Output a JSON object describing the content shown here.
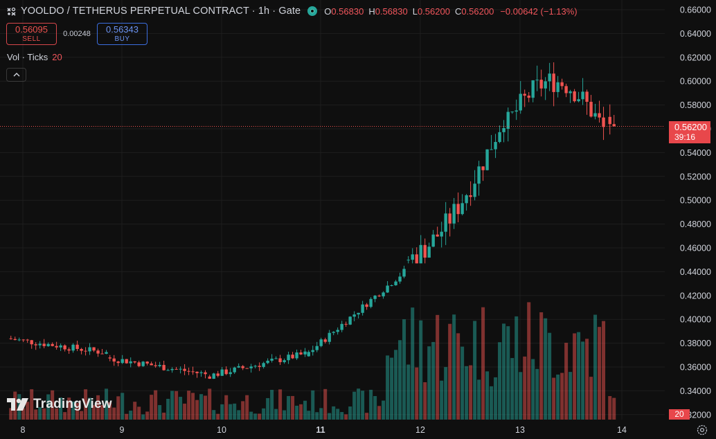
{
  "header": {
    "title": "YOOLDO / TETHERUS PERPETUAL CONTRACT · 1h · Gate",
    "open_label": "O",
    "open_value": "0.56830",
    "high_label": "H",
    "high_value": "0.56830",
    "low_label": "L",
    "low_value": "0.56200",
    "close_label": "C",
    "close_value": "0.56200",
    "change": "−0.00642 (−1.13%)"
  },
  "trade": {
    "sell_price": "0.56095",
    "sell_label": "SELL",
    "spread": "0.00248",
    "buy_price": "0.56343",
    "buy_label": "BUY"
  },
  "volume_legend": {
    "label": "Vol · Ticks",
    "value": "20"
  },
  "price_scale": {
    "labels": [
      "0.66000",
      "0.64000",
      "0.62000",
      "0.60000",
      "0.58000",
      "0.56000",
      "0.54000",
      "0.52000",
      "0.50000",
      "0.48000",
      "0.46000",
      "0.44000",
      "0.42000",
      "0.40000",
      "0.38000",
      "0.36000",
      "0.34000",
      "0.32000"
    ],
    "current_price": "0.56200",
    "countdown": "39:16",
    "volume_tag": "20"
  },
  "time_scale": {
    "labels": [
      "8",
      "9",
      "10",
      "11",
      "12",
      "13",
      "14"
    ],
    "bold_label": "11"
  },
  "watermark": "TradingView",
  "colors": {
    "up": "#26a69a",
    "down": "#ef5350",
    "background": "#0f0f0f",
    "grid": "#1e1e1e"
  },
  "chart_data": {
    "type": "candlestick",
    "interval": "1h",
    "x_labels": [
      "8",
      "9",
      "10",
      "11",
      "12",
      "13",
      "14"
    ],
    "y_axis": "price",
    "ylim": [
      0.32,
      0.66
    ],
    "last_close": 0.562,
    "days": [
      {
        "day": "8",
        "start_price": 0.384,
        "end_price": 0.372,
        "high": 0.387,
        "low": 0.368
      },
      {
        "day": "9",
        "start_price": 0.368,
        "end_price": 0.354,
        "high": 0.37,
        "low": 0.346
      },
      {
        "day": "10",
        "start_price": 0.352,
        "end_price": 0.371,
        "high": 0.378,
        "low": 0.35
      },
      {
        "day": "11",
        "start_price": 0.369,
        "end_price": 0.44,
        "high": 0.445,
        "low": 0.364
      },
      {
        "day": "12",
        "start_price": 0.45,
        "end_price": 0.57,
        "high": 0.617,
        "low": 0.447
      },
      {
        "day": "13",
        "start_price": 0.56,
        "end_price": 0.58,
        "high": 0.632,
        "low": 0.543
      },
      {
        "day": "14",
        "start_price": 0.57,
        "end_price": 0.562,
        "high": 0.583,
        "low": 0.54
      }
    ]
  }
}
